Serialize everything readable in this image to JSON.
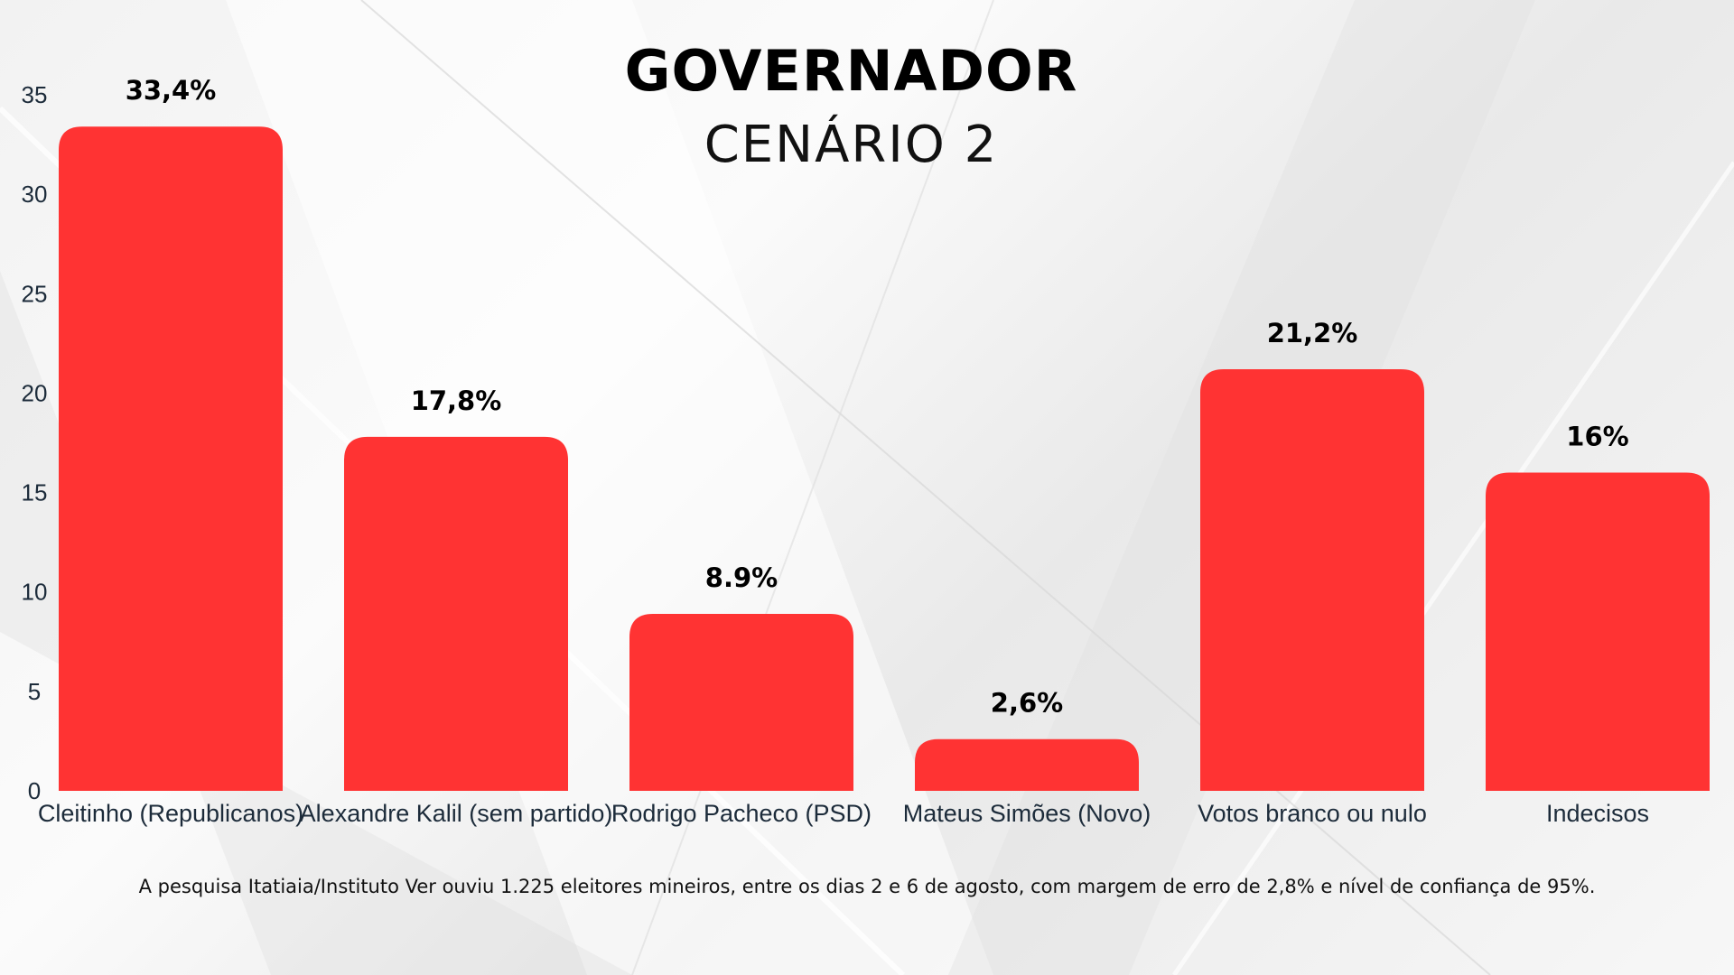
{
  "title": "GOVERNADOR",
  "subtitle": "CENÁRIO 2",
  "footnote": "A pesquisa Itatiaia/Instituto Ver ouviu 1.225 eleitores mineiros, entre os dias 2 e 6 de agosto, com margem de erro de 2,8% e nível de confiança de 95%.",
  "colors": {
    "bar": "#ff3333"
  },
  "chart_data": {
    "type": "bar",
    "categories": [
      "Cleitinho (Republicanos)",
      "Alexandre Kalil (sem partido)",
      "Rodrigo Pacheco (PSD)",
      "Mateus Simões (Novo)",
      "Votos branco ou nulo",
      "Indecisos"
    ],
    "values": [
      33.4,
      17.8,
      8.9,
      2.6,
      21.2,
      16
    ],
    "data_labels": [
      "33,4%",
      "17,8%",
      "8.9%",
      "2,6%",
      "21,2%",
      "16%"
    ],
    "yticks": [
      "0",
      "5",
      "10",
      "15",
      "20",
      "25",
      "30",
      "35"
    ],
    "ylim": [
      0,
      35
    ],
    "grid": false,
    "legend": "none"
  }
}
